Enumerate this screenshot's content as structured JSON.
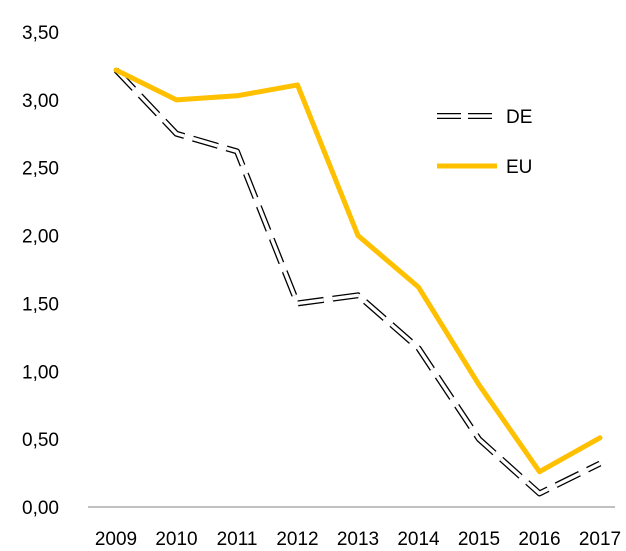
{
  "chart_data": {
    "type": "line",
    "categories": [
      "2009",
      "2010",
      "2011",
      "2012",
      "2013",
      "2014",
      "2015",
      "2016",
      "2017"
    ],
    "series": [
      {
        "name": "DE",
        "values": [
          3.22,
          2.75,
          2.62,
          1.5,
          1.56,
          1.17,
          0.5,
          0.1,
          0.32
        ],
        "color": "#000000",
        "style": "dashed-outline"
      },
      {
        "name": "EU",
        "values": [
          3.22,
          3.0,
          3.03,
          3.11,
          2.0,
          1.62,
          0.9,
          0.26,
          0.51
        ],
        "color": "#FFC000",
        "style": "solid"
      }
    ],
    "y_ticks": [
      "0,00",
      "0,50",
      "1,00",
      "1,50",
      "2,00",
      "2,50",
      "3,00",
      "3,50"
    ],
    "ylim": [
      0,
      3.5
    ],
    "grid": false,
    "legend_position": "right"
  }
}
